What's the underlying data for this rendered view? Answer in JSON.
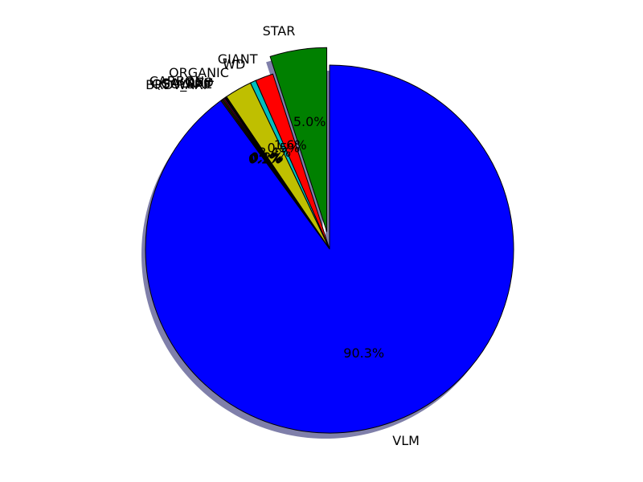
{
  "chart_data": {
    "type": "pie",
    "title": "",
    "start_angle_deg": 90,
    "direction": "counterclockwise",
    "shadow": true,
    "exploded_slice": "STAR",
    "labels": [
      "STAR",
      "GIANT",
      "WD",
      "ORGANIC",
      "CARBON+",
      "QSO",
      "GALAXY",
      "QSO_BAL",
      "BRDWARF",
      "VLM"
    ],
    "values": [
      5.0,
      1.6,
      0.5,
      2.4,
      0.2,
      0.1,
      0.1,
      0.1,
      0.1,
      90.3
    ],
    "pct_labels": [
      "5.0%",
      "1.6%",
      "0.5%",
      "2.4%",
      "0.2%",
      "0.1%",
      "0.1%",
      "0.1%",
      "0.1%",
      "90.3%"
    ],
    "colors": [
      "#008000",
      "#ff0000",
      "#00bfbf",
      "#bfbf00",
      "#000000",
      "#bf00bf",
      "#ff0000",
      "#008000",
      "#a52a2a",
      "#0000ff"
    ]
  }
}
